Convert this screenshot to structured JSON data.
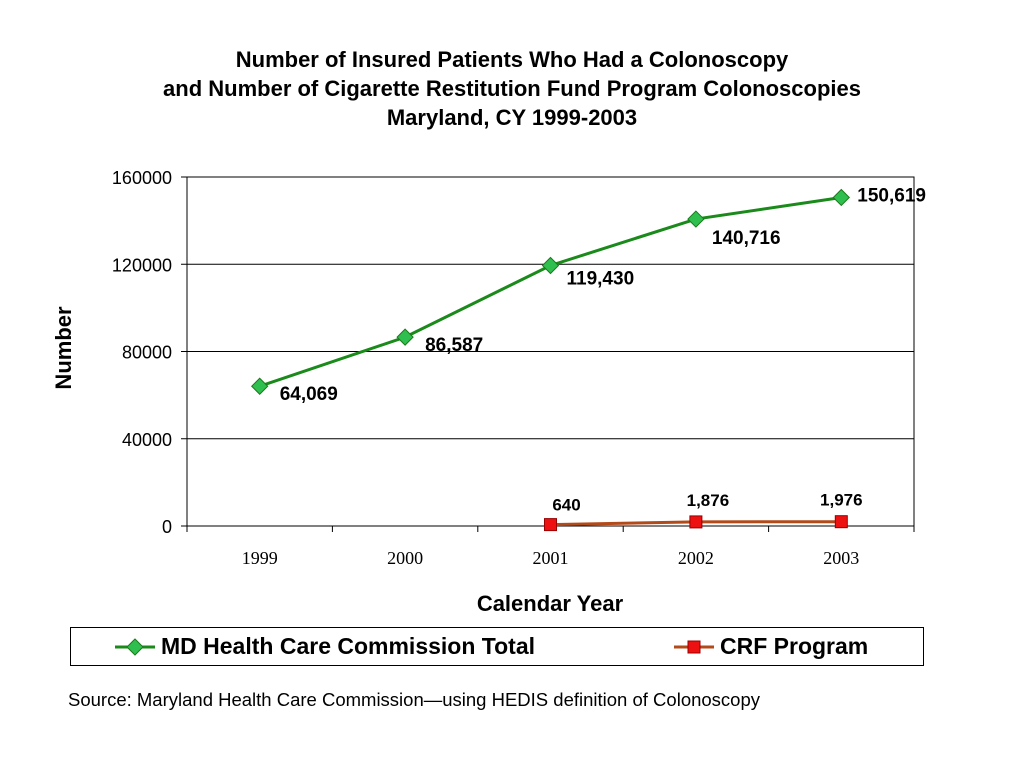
{
  "chart_data": {
    "type": "line",
    "title_lines": [
      "Number of Insured Patients Who Had a Colonoscopy",
      "and Number of Cigarette Restitution Fund Program Colonoscopies",
      "Maryland, CY 1999-2003"
    ],
    "xlabel": "Calendar Year",
    "ylabel": "Number",
    "categories": [
      "1999",
      "2000",
      "2001",
      "2002",
      "2003"
    ],
    "yticks": [
      "0",
      "40000",
      "80000",
      "120000",
      "160000"
    ],
    "ylim": [
      0,
      160000
    ],
    "grid": "horizontal",
    "legend_position": "bottom",
    "series": [
      {
        "name": "MD Health Care Commission Total",
        "values": [
          64069,
          86587,
          119430,
          140716,
          150619
        ],
        "labels": [
          "64,069",
          "86,587",
          "119,430",
          "140,716",
          "150,619"
        ],
        "color": "#1a8a1a",
        "marker": "diamond"
      },
      {
        "name": "CRF Program",
        "values": [
          null,
          null,
          640,
          1876,
          1976
        ],
        "labels": [
          "",
          "",
          "640",
          "1,876",
          "1,976"
        ],
        "color": "#b34a1a",
        "marker": "square",
        "marker_color": "#ee1111"
      }
    ]
  },
  "source_text": "Source:  Maryland Health Care Commission—using HEDIS definition of Colonoscopy"
}
